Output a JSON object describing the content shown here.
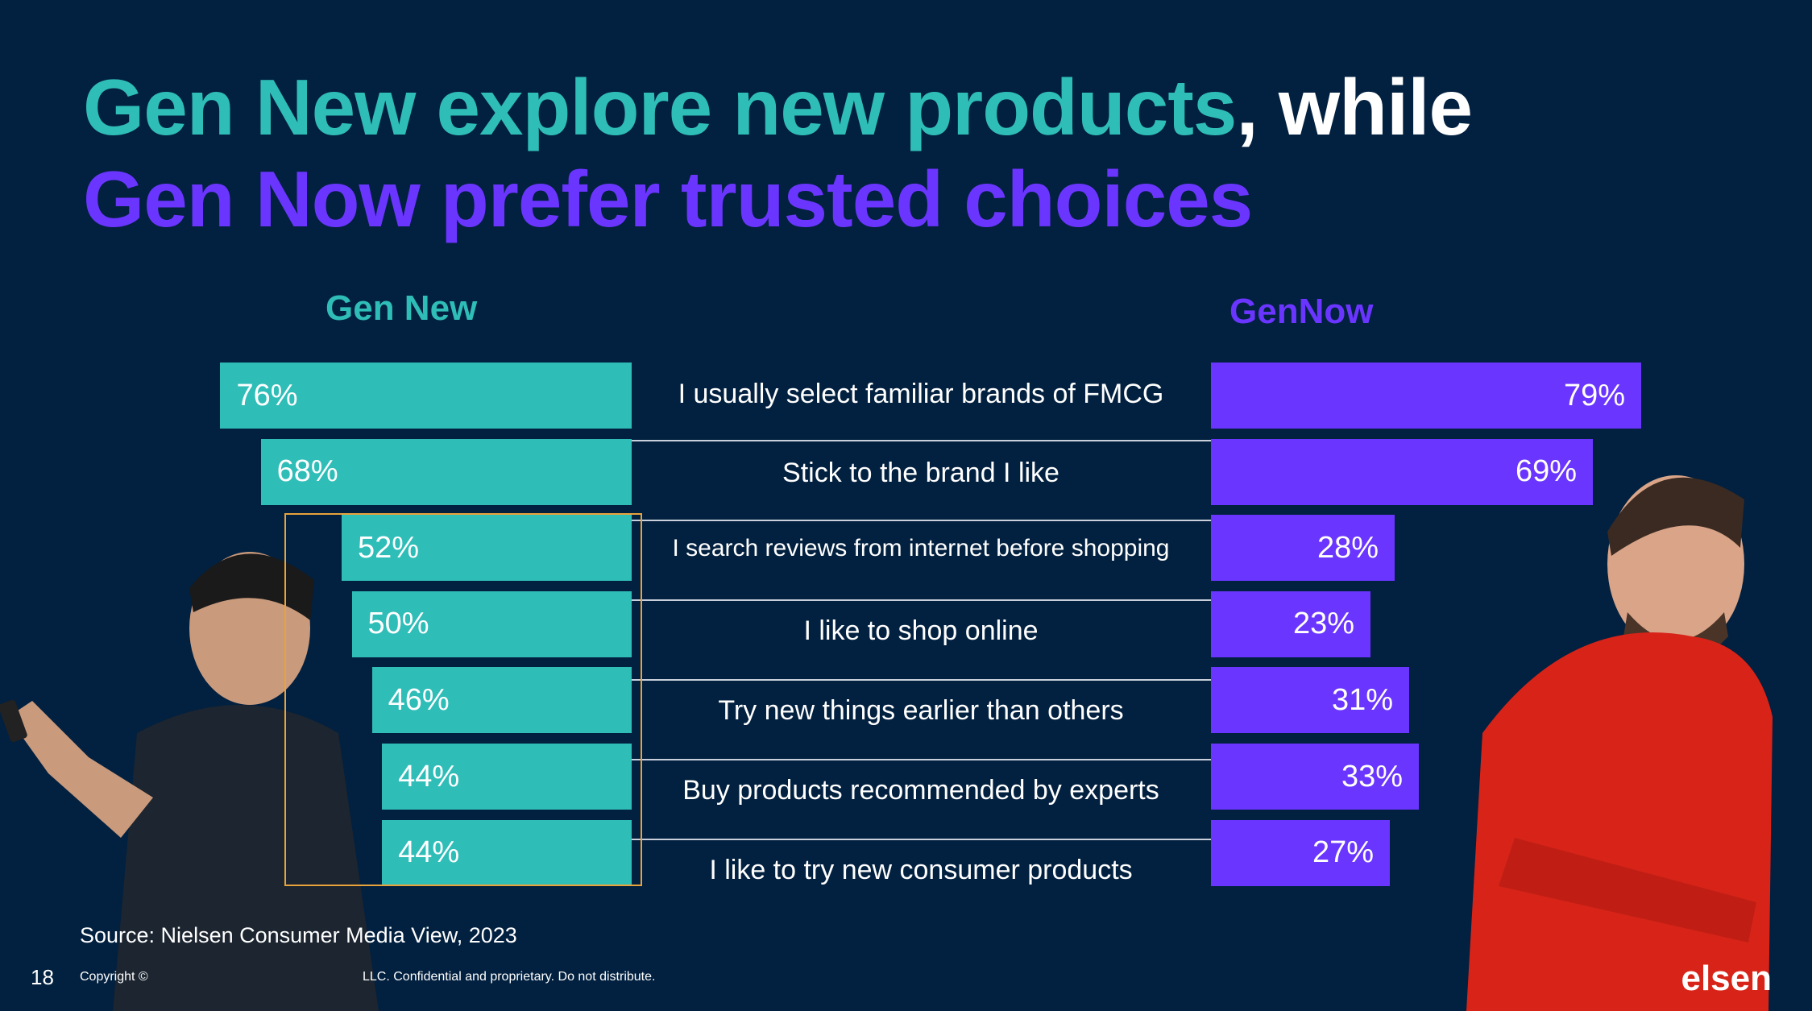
{
  "title": {
    "line1_teal": "Gen New explore new products",
    "line1_white": ", while",
    "line2_purple": "Gen Now prefer trusted choices"
  },
  "colors": {
    "background": "#02203f",
    "teal": "#2fbdb8",
    "purple": "#6a35ff",
    "highlight_box": "#e8a33a"
  },
  "chart_data": {
    "type": "bar",
    "title": "Gen New explore new products, while Gen Now prefer trusted choices",
    "categories": [
      "I usually select familiar brands of FMCG",
      "Stick to the brand I like",
      "I search reviews from internet before shopping",
      "I like to shop online",
      "Try new things earlier than others",
      "Buy products recommended by experts",
      "I like to try new consumer products"
    ],
    "series": [
      {
        "name": "Gen New",
        "values": [
          76,
          68,
          52,
          50,
          46,
          44,
          44
        ],
        "labels": [
          "76%",
          "68%",
          "52%",
          "50%",
          "46%",
          "44%",
          "44%"
        ]
      },
      {
        "name": "GenNow",
        "values": [
          79,
          69,
          28,
          23,
          31,
          33,
          27
        ],
        "labels": [
          "79%",
          "69%",
          "28%",
          "23%",
          "31%",
          "33%",
          "27%"
        ]
      }
    ],
    "highlighted_categories_gen_new": [
      2,
      3,
      4,
      5,
      6
    ]
  },
  "footer": {
    "source": "Source: Nielsen Consumer Media View, 2023",
    "page_number": "18",
    "copyright_left": "Copyright ©",
    "copyright_right": "LLC. Confidential and proprietary. Do not distribute.",
    "logo_text": "elsen"
  }
}
